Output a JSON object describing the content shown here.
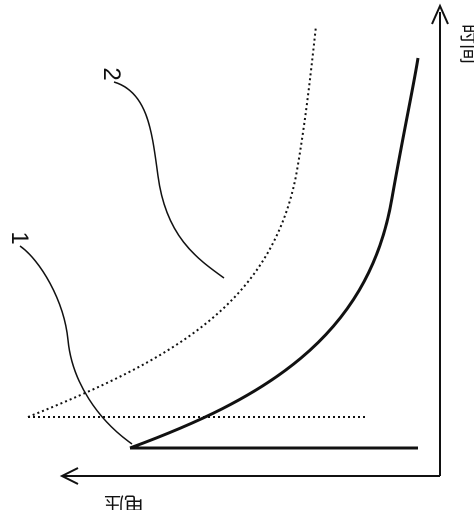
{
  "axes": {
    "vertical_label": "时间",
    "horizontal_label": "电压"
  },
  "curves": [
    {
      "label": "1",
      "style": "solid"
    },
    {
      "label": "2",
      "style": "dotted"
    }
  ],
  "colors": {
    "ink": "#111111",
    "background": "#ffffff"
  }
}
